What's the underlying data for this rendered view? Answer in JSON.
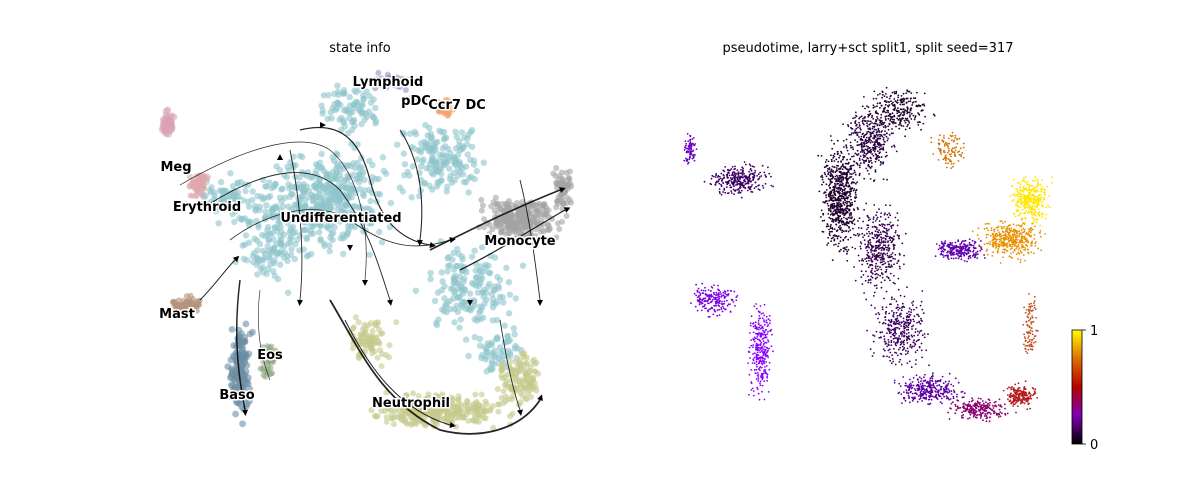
{
  "chart_data": [
    {
      "type": "scatter",
      "title": "state info",
      "subtype": "embedding with velocity streamlines",
      "axes_visible": false,
      "grid": false,
      "legend": "on data",
      "clusters": [
        {
          "name": "Undifferentiated",
          "color": "#8ec5cb",
          "label": "Undifferentiated"
        },
        {
          "name": "Monocyte",
          "color": "#a3a3a3",
          "label": "Monocyte"
        },
        {
          "name": "Neutrophil",
          "color": "#c5c98a",
          "label": "Neutrophil"
        },
        {
          "name": "Erythroid",
          "color": "#e0a6ab",
          "label": "Erythroid"
        },
        {
          "name": "Meg",
          "color": "#d8a3b3",
          "label": "Meg"
        },
        {
          "name": "Mast",
          "color": "#b6927a",
          "label": "Mast"
        },
        {
          "name": "Baso",
          "color": "#6d8ea3",
          "label": "Baso"
        },
        {
          "name": "Eos",
          "color": "#8fac80",
          "label": "Eos"
        },
        {
          "name": "Lymphoid",
          "color": "#a08ccc",
          "label": "Lymphoid"
        },
        {
          "name": "pDC",
          "color": "#e8b2b8",
          "label": "pDC"
        },
        {
          "name": "Ccr7 DC",
          "color": "#f2a46a",
          "label": "Ccr7 DC"
        }
      ],
      "streamline_color": "#000000"
    },
    {
      "type": "scatter",
      "title": "pseudotime, larry+sct split1, split seed=317",
      "axes_visible": false,
      "grid": false,
      "colormap": "gnuplot",
      "colorbar": {
        "min": 0,
        "max": 1,
        "ticks": [
          "0",
          "1"
        ]
      }
    }
  ]
}
